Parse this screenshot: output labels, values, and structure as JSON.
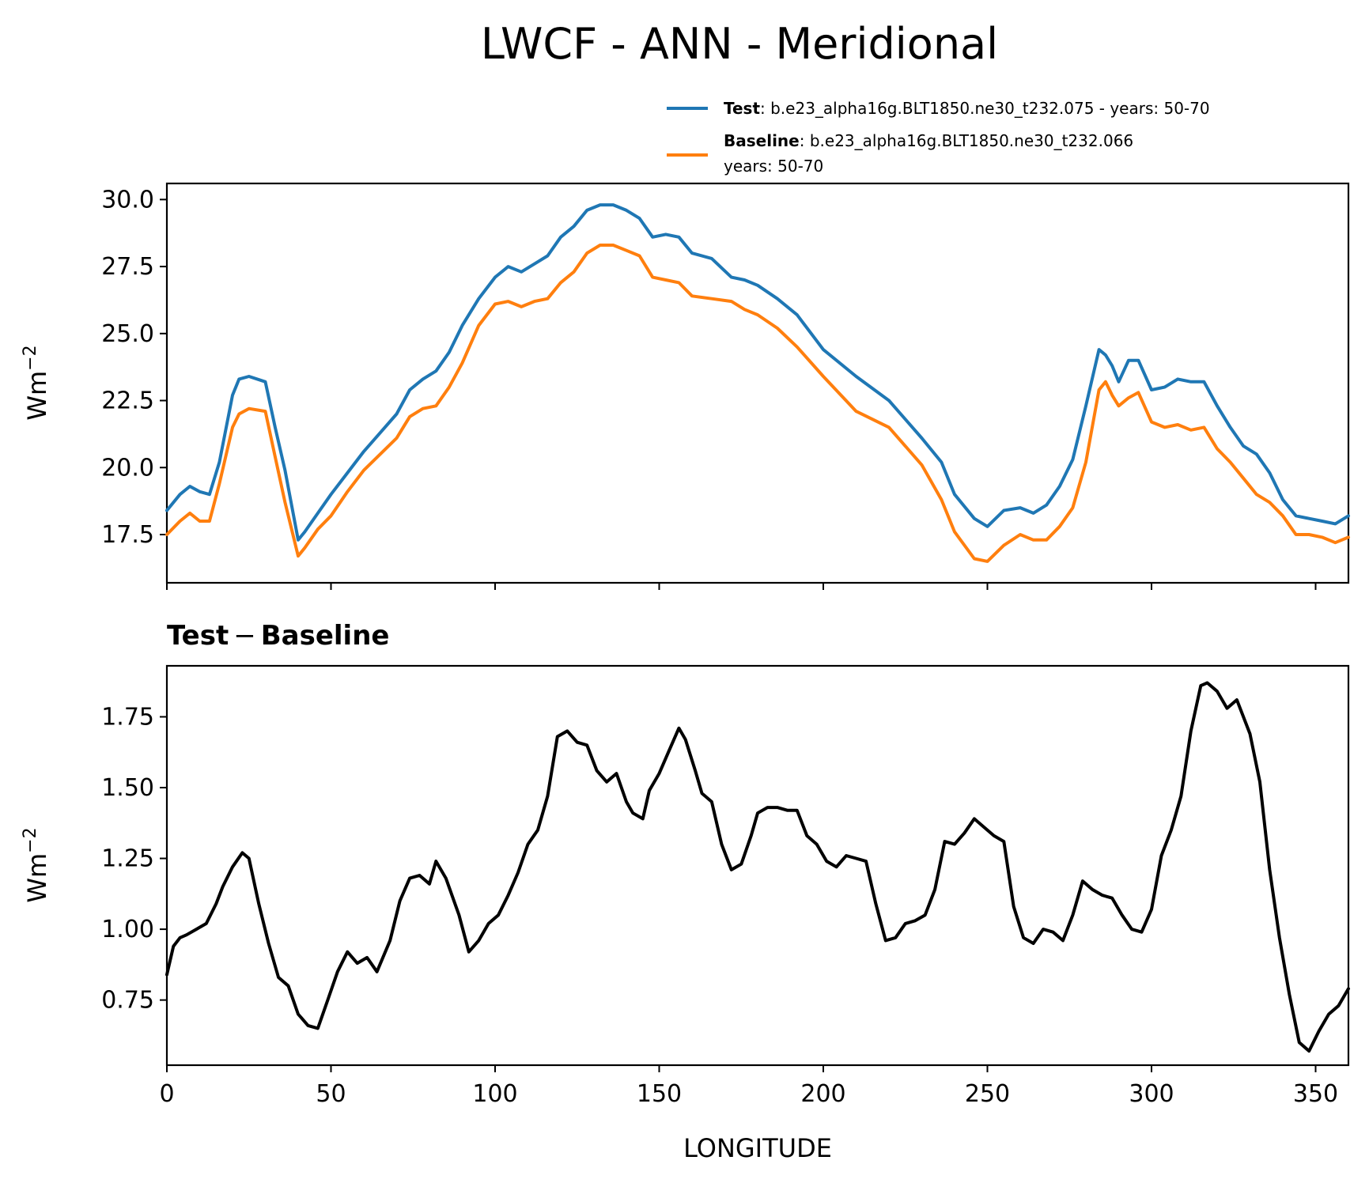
{
  "chart_data": {
    "type": "line",
    "title": "LWCF - ANN - Meridional",
    "xlabel": "LONGITUDE",
    "xlim": [
      0,
      360
    ],
    "x_ticks": [
      0,
      50,
      100,
      150,
      200,
      250,
      300,
      350
    ],
    "x_tick_labels": [
      "0",
      "50",
      "100",
      "150",
      "200",
      "250",
      "300",
      "350"
    ],
    "panels": [
      {
        "name": "top",
        "ylabel": "Wm",
        "ylabel_sup": "−2",
        "ylim": [
          15.7,
          30.6
        ],
        "y_ticks": [
          17.5,
          20.0,
          22.5,
          25.0,
          27.5,
          30.0
        ],
        "y_tick_labels": [
          "17.5",
          "20.0",
          "22.5",
          "25.0",
          "27.5",
          "30.0"
        ],
        "legend": {
          "position": "above-right",
          "entries": [
            {
              "series": "Test",
              "label_bold": "Test",
              "label_rest": ": b.e23_alpha16g.BLT1850.ne30_t232.075 - years: 50-70",
              "line2": ""
            },
            {
              "series": "Baseline",
              "label_bold": "Baseline",
              "label_rest": ": b.e23_alpha16g.BLT1850.ne30_t232.066",
              "line2": "years: 50-70"
            }
          ]
        },
        "series": [
          {
            "name": "Test",
            "color": "#1f77b4",
            "x": [
              0,
              4,
              7,
              10,
              13,
              16,
              20,
              22,
              25,
              30,
              33,
              36,
              40,
              42,
              46,
              50,
              55,
              60,
              65,
              70,
              74,
              78,
              82,
              86,
              90,
              95,
              100,
              104,
              108,
              112,
              116,
              120,
              124,
              128,
              132,
              136,
              140,
              144,
              148,
              152,
              156,
              160,
              166,
              172,
              176,
              180,
              186,
              192,
              200,
              210,
              220,
              230,
              236,
              240,
              246,
              250,
              255,
              260,
              264,
              268,
              272,
              276,
              280,
              284,
              286,
              288,
              290,
              293,
              296,
              300,
              304,
              308,
              312,
              316,
              320,
              324,
              328,
              332,
              336,
              340,
              344,
              348,
              352,
              356,
              360
            ],
            "y": [
              18.4,
              19.0,
              19.3,
              19.1,
              19.0,
              20.2,
              22.7,
              23.3,
              23.4,
              23.2,
              21.5,
              19.9,
              17.3,
              17.6,
              18.3,
              19.0,
              19.8,
              20.6,
              21.3,
              22.0,
              22.9,
              23.3,
              23.6,
              24.3,
              25.3,
              26.3,
              27.1,
              27.5,
              27.3,
              27.6,
              27.9,
              28.6,
              29.0,
              29.6,
              29.8,
              29.8,
              29.6,
              29.3,
              28.6,
              28.7,
              28.6,
              28.0,
              27.8,
              27.1,
              27.0,
              26.8,
              26.3,
              25.7,
              24.4,
              23.4,
              22.5,
              21.1,
              20.2,
              19.0,
              18.1,
              17.8,
              18.4,
              18.5,
              18.3,
              18.6,
              19.3,
              20.3,
              22.3,
              24.4,
              24.2,
              23.8,
              23.2,
              24.0,
              24.0,
              22.9,
              23.0,
              23.3,
              23.2,
              23.2,
              22.3,
              21.5,
              20.8,
              20.5,
              19.8,
              18.8,
              18.2,
              18.1,
              18.0,
              17.9,
              18.2
            ]
          },
          {
            "name": "Baseline",
            "color": "#ff7f0e",
            "x": [
              0,
              4,
              7,
              10,
              13,
              16,
              20,
              22,
              25,
              30,
              33,
              36,
              40,
              42,
              46,
              50,
              55,
              60,
              65,
              70,
              74,
              78,
              82,
              86,
              90,
              95,
              100,
              104,
              108,
              112,
              116,
              120,
              124,
              128,
              132,
              136,
              140,
              144,
              148,
              152,
              156,
              160,
              166,
              172,
              176,
              180,
              186,
              192,
              200,
              210,
              220,
              230,
              236,
              240,
              246,
              250,
              255,
              260,
              264,
              268,
              272,
              276,
              280,
              284,
              286,
              288,
              290,
              293,
              296,
              300,
              304,
              308,
              312,
              316,
              320,
              324,
              328,
              332,
              336,
              340,
              344,
              348,
              352,
              356,
              360
            ],
            "y": [
              17.5,
              18.0,
              18.3,
              18.0,
              18.0,
              19.4,
              21.5,
              22.0,
              22.2,
              22.1,
              20.4,
              18.7,
              16.7,
              17.0,
              17.7,
              18.2,
              19.1,
              19.9,
              20.5,
              21.1,
              21.9,
              22.2,
              22.3,
              23.0,
              23.9,
              25.3,
              26.1,
              26.2,
              26.0,
              26.2,
              26.3,
              26.9,
              27.3,
              28.0,
              28.3,
              28.3,
              28.1,
              27.9,
              27.1,
              27.0,
              26.9,
              26.4,
              26.3,
              26.2,
              25.9,
              25.7,
              25.2,
              24.5,
              23.4,
              22.1,
              21.5,
              20.1,
              18.8,
              17.6,
              16.6,
              16.5,
              17.1,
              17.5,
              17.3,
              17.3,
              17.8,
              18.5,
              20.2,
              22.9,
              23.2,
              22.7,
              22.3,
              22.6,
              22.8,
              21.7,
              21.5,
              21.6,
              21.4,
              21.5,
              20.7,
              20.2,
              19.6,
              19.0,
              18.7,
              18.2,
              17.5,
              17.5,
              17.4,
              17.2,
              17.4
            ]
          }
        ]
      },
      {
        "name": "bottom",
        "subtitle_bold_a": "Test",
        "subtitle_minus": "−",
        "subtitle_bold_b": "Baseline",
        "ylabel": "Wm",
        "ylabel_sup": "−2",
        "ylim": [
          0.52,
          1.93
        ],
        "y_ticks": [
          0.75,
          1.0,
          1.25,
          1.5,
          1.75
        ],
        "y_tick_labels": [
          "0.75",
          "1.00",
          "1.25",
          "1.50",
          "1.75"
        ],
        "series": [
          {
            "name": "Test − Baseline",
            "color": "#000000",
            "x": [
              0,
              2,
              4,
              6,
              9,
              12,
              15,
              17,
              20,
              23,
              25,
              28,
              31,
              34,
              37,
              40,
              43,
              46,
              49,
              52,
              55,
              58,
              61,
              64,
              68,
              71,
              74,
              77,
              80,
              82,
              85,
              89,
              92,
              95,
              98,
              101,
              104,
              107,
              110,
              113,
              116,
              119,
              122,
              125,
              128,
              131,
              134,
              137,
              140,
              142,
              145,
              147,
              150,
              153,
              156,
              158,
              161,
              163,
              166,
              169,
              172,
              175,
              178,
              180,
              183,
              186,
              189,
              192,
              195,
              198,
              201,
              204,
              207,
              210,
              213,
              216,
              219,
              222,
              225,
              228,
              231,
              234,
              237,
              240,
              243,
              246,
              249,
              252,
              255,
              258,
              261,
              264,
              267,
              270,
              273,
              276,
              279,
              282,
              285,
              288,
              291,
              294,
              297,
              300,
              303,
              306,
              309,
              312,
              315,
              317,
              320,
              323,
              326,
              330,
              333,
              336,
              339,
              342,
              345,
              348,
              351,
              354,
              357,
              360
            ],
            "y": [
              0.84,
              0.94,
              0.97,
              0.98,
              1.0,
              1.02,
              1.09,
              1.15,
              1.22,
              1.27,
              1.25,
              1.09,
              0.95,
              0.83,
              0.8,
              0.7,
              0.66,
              0.65,
              0.75,
              0.85,
              0.92,
              0.88,
              0.9,
              0.85,
              0.96,
              1.1,
              1.18,
              1.19,
              1.16,
              1.24,
              1.18,
              1.05,
              0.92,
              0.96,
              1.02,
              1.05,
              1.12,
              1.2,
              1.3,
              1.35,
              1.47,
              1.68,
              1.7,
              1.66,
              1.65,
              1.56,
              1.52,
              1.55,
              1.45,
              1.41,
              1.39,
              1.49,
              1.55,
              1.63,
              1.71,
              1.67,
              1.56,
              1.48,
              1.45,
              1.3,
              1.21,
              1.23,
              1.33,
              1.41,
              1.43,
              1.43,
              1.42,
              1.42,
              1.33,
              1.3,
              1.24,
              1.22,
              1.26,
              1.25,
              1.24,
              1.09,
              0.96,
              0.97,
              1.02,
              1.03,
              1.05,
              1.14,
              1.31,
              1.3,
              1.34,
              1.39,
              1.36,
              1.33,
              1.31,
              1.08,
              0.97,
              0.95,
              1.0,
              0.99,
              0.96,
              1.05,
              1.17,
              1.14,
              1.12,
              1.11,
              1.05,
              1.0,
              0.99,
              1.07,
              1.26,
              1.35,
              1.47,
              1.7,
              1.86,
              1.87,
              1.84,
              1.78,
              1.81,
              1.69,
              1.52,
              1.21,
              0.97,
              0.77,
              0.6,
              0.57,
              0.64,
              0.7,
              0.73,
              0.79
            ]
          }
        ]
      }
    ]
  }
}
